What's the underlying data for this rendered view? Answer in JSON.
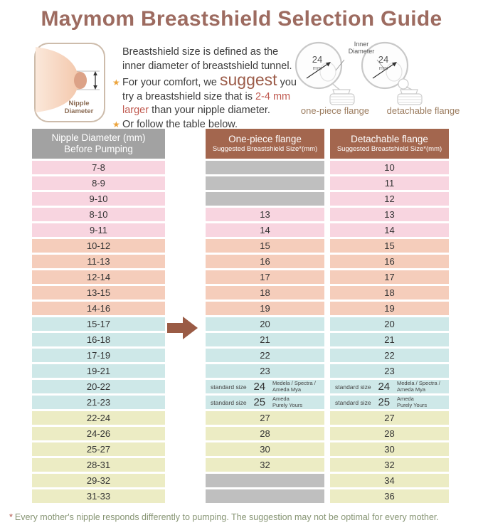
{
  "title": "Maymom Breastshield Selection Guide",
  "intro": {
    "line1": "Breastshield size is defined as the",
    "line2": "inner diameter of breastshield tunnel.",
    "bullet_icon": "★",
    "b1_pre": "For your comfort, we ",
    "b1_big": "suggest",
    "b1_post": " you",
    "b1_l2": "try a breastshield size that is ",
    "b1_l2_red": "2-4 mm",
    "b1_l3_red": "larger",
    "b1_l3": " than your nipple diameter.",
    "b2": "Or follow the table below.",
    "nipple_label_1": "Nipple",
    "nipple_label_2": "Diameter"
  },
  "flanges": {
    "inner_label_1": "Inner",
    "inner_label_2": "Diameter",
    "size_value": "24",
    "size_unit": "mm",
    "left_caption": "one-piece flange",
    "right_caption": "detachable flange"
  },
  "table": {
    "headers": [
      {
        "line1": "Nipple Diameter (mm)",
        "line2": "Before Pumping"
      },
      {
        "line1": "One-piece flange",
        "line2": "Suggested Breastshield Size*(mm)"
      },
      {
        "line1": "Detachable flange",
        "line2": "Suggested Breastshield Size*(mm)"
      }
    ],
    "rows": [
      {
        "diameter": "7-8",
        "one_piece": null,
        "detachable": "10",
        "group": "pink"
      },
      {
        "diameter": "8-9",
        "one_piece": null,
        "detachable": "11",
        "group": "pink"
      },
      {
        "diameter": "9-10",
        "one_piece": null,
        "detachable": "12",
        "group": "pink"
      },
      {
        "diameter": "8-10",
        "one_piece": "13",
        "detachable": "13",
        "group": "pink"
      },
      {
        "diameter": "9-11",
        "one_piece": "14",
        "detachable": "14",
        "group": "pink"
      },
      {
        "diameter": "10-12",
        "one_piece": "15",
        "detachable": "15",
        "group": "salmon"
      },
      {
        "diameter": "11-13",
        "one_piece": "16",
        "detachable": "16",
        "group": "salmon"
      },
      {
        "diameter": "12-14",
        "one_piece": "17",
        "detachable": "17",
        "group": "salmon"
      },
      {
        "diameter": "13-15",
        "one_piece": "18",
        "detachable": "18",
        "group": "salmon"
      },
      {
        "diameter": "14-16",
        "one_piece": "19",
        "detachable": "19",
        "group": "salmon"
      },
      {
        "diameter": "15-17",
        "one_piece": "20",
        "detachable": "20",
        "group": "blue",
        "arrow": true
      },
      {
        "diameter": "16-18",
        "one_piece": "21",
        "detachable": "21",
        "group": "blue"
      },
      {
        "diameter": "17-19",
        "one_piece": "22",
        "detachable": "22",
        "group": "blue"
      },
      {
        "diameter": "19-21",
        "one_piece": "23",
        "detachable": "23",
        "group": "blue"
      },
      {
        "diameter": "20-22",
        "one_piece": "special24",
        "detachable": "special24",
        "group": "blue"
      },
      {
        "diameter": "21-23",
        "one_piece": "special25",
        "detachable": "special25",
        "group": "blue"
      },
      {
        "diameter": "22-24",
        "one_piece": "27",
        "detachable": "27",
        "group": "yellow"
      },
      {
        "diameter": "24-26",
        "one_piece": "28",
        "detachable": "28",
        "group": "yellow"
      },
      {
        "diameter": "25-27",
        "one_piece": "30",
        "detachable": "30",
        "group": "yellow"
      },
      {
        "diameter": "28-31",
        "one_piece": "32",
        "detachable": "32",
        "group": "yellow"
      },
      {
        "diameter": "29-32",
        "one_piece": null,
        "detachable": "34",
        "group": "yellow"
      },
      {
        "diameter": "31-33",
        "one_piece": null,
        "detachable": "36",
        "group": "yellow"
      }
    ],
    "special_sizes": {
      "special24": {
        "pre": "standard size",
        "size": "24",
        "brands": [
          "Medela / Spectra /",
          "Ameda Mya"
        ]
      },
      "special25": {
        "pre": "standard size",
        "size": "25",
        "brands": [
          "Ameda",
          "Purely Yours"
        ]
      }
    }
  },
  "footnote": {
    "asterisk": "*",
    "text": "Every mother's nipple responds differently to pumping. The suggestion may not be optimal for every mother."
  },
  "colors": {
    "title": "#9d6b60",
    "accent_brown": "#a3664e",
    "header_gray": "#a2a2a2",
    "empty_cell": "#bfbfbf",
    "highlight_red": "#c05a50",
    "star_orange": "#eca43c",
    "arrow_brown": "#9a5b45",
    "footnote_green": "#879574",
    "groups": {
      "pink": "#f8d5e0",
      "salmon": "#f5cdbb",
      "blue": "#cee8e8",
      "yellow": "#ececc4"
    }
  }
}
